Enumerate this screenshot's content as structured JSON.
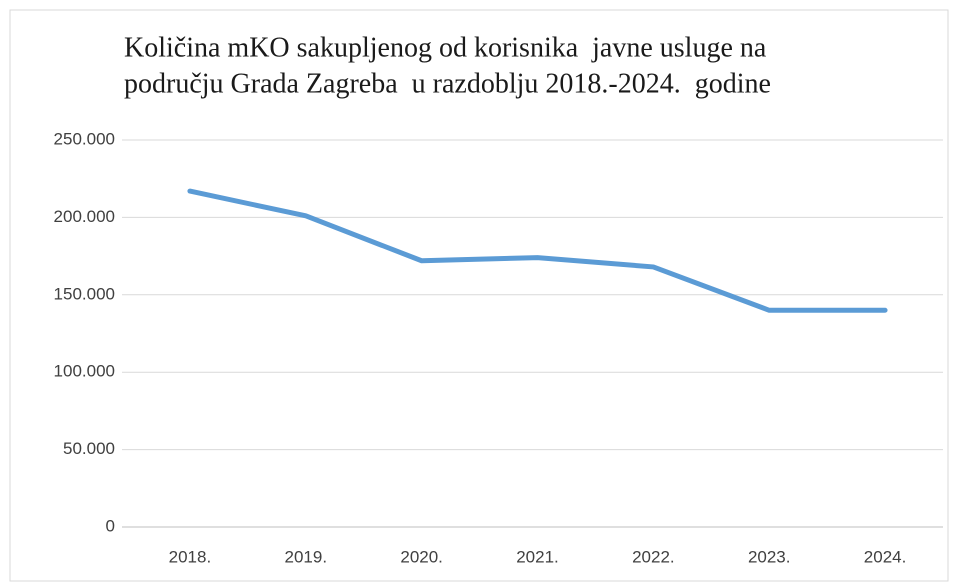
{
  "chart_data": {
    "type": "line",
    "title": [
      "Količina mKO sakupljenog od korisnika  javne usluge na",
      "području Grada Zagreba  u razdoblju 2018.-2024.  godine"
    ],
    "categories": [
      "2018.",
      "2019.",
      "2020.",
      "2021.",
      "2022.",
      "2023.",
      "2024."
    ],
    "values": [
      217000,
      201000,
      172000,
      174000,
      168000,
      140000,
      140000
    ],
    "color": "#5b9bd5",
    "ylim": [
      0,
      250000
    ],
    "yticks": [
      0,
      {
        "value": 50000,
        "label": "50.000"
      },
      {
        "value": 100000,
        "label": "100.000"
      },
      {
        "value": 150000,
        "label": "150.000"
      },
      {
        "value": 200000,
        "label": "200.000"
      },
      {
        "value": 250000,
        "label": "250.000"
      }
    ],
    "grid": true
  }
}
